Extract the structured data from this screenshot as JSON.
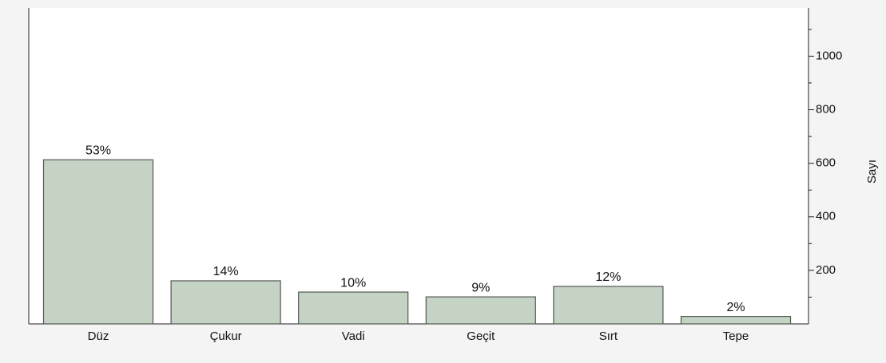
{
  "chart_data": {
    "type": "bar",
    "categories": [
      "Düz",
      "Çukur",
      "Vadi",
      "Geçit",
      "Sırt",
      "Tepe"
    ],
    "values": [
      613,
      161,
      119,
      101,
      140,
      28
    ],
    "value_labels": [
      "53%",
      "14%",
      "10%",
      "9%",
      "12%",
      "2%"
    ],
    "color": "#c5d3c5",
    "y_label": "Sayı",
    "ylim": [
      0,
      1180
    ],
    "yticks": [
      200,
      400,
      600,
      800,
      1000
    ],
    "minor_yticks": [
      100,
      300,
      500,
      700,
      900,
      1100
    ]
  }
}
